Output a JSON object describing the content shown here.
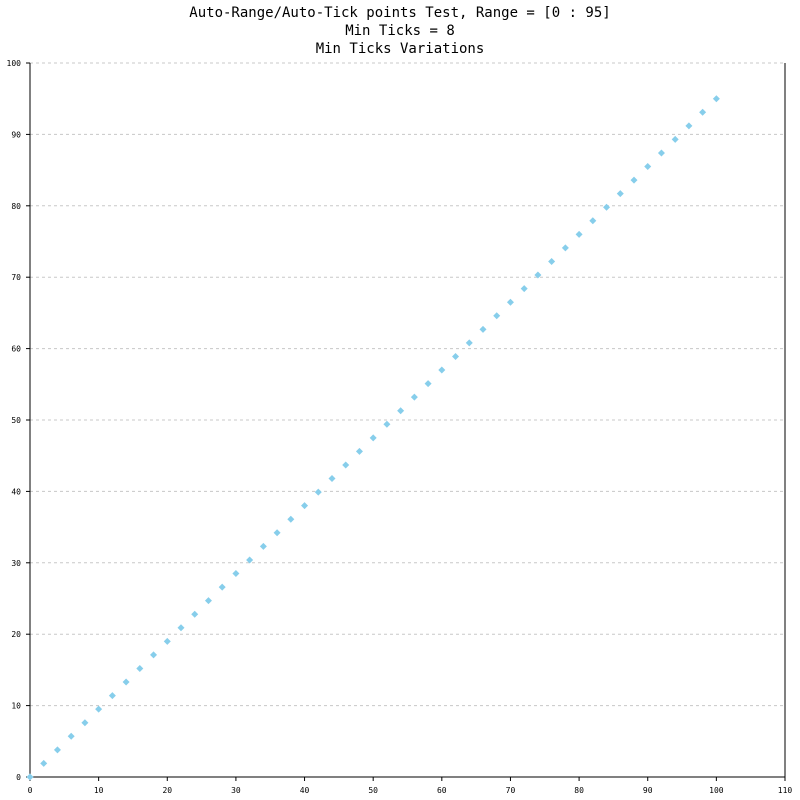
{
  "chart_data": {
    "type": "scatter",
    "title": [
      "Auto-Range/Auto-Tick points Test, Range = [0 : 95]",
      "Min Ticks = 8",
      "Min Ticks Variations"
    ],
    "xlabel": "",
    "ylabel": "",
    "xlim": [
      0,
      110
    ],
    "ylim": [
      0,
      100
    ],
    "x_ticks": [
      0,
      10,
      20,
      30,
      40,
      50,
      60,
      70,
      80,
      90,
      100,
      110
    ],
    "y_ticks": [
      0,
      10,
      20,
      30,
      40,
      50,
      60,
      70,
      80,
      90,
      100
    ],
    "grid": "horizontal-dashed",
    "marker": "diamond",
    "color": "#87ceeb",
    "series": [
      {
        "x": [
          0,
          2,
          4,
          6,
          8,
          10,
          12,
          14,
          16,
          18,
          20,
          22,
          24,
          26,
          28,
          30,
          32,
          34,
          36,
          38,
          40,
          42,
          44,
          46,
          48,
          50,
          52,
          54,
          56,
          58,
          60,
          62,
          64,
          66,
          68,
          70,
          72,
          74,
          76,
          78,
          80,
          82,
          84,
          86,
          88,
          90,
          92,
          94,
          96,
          98,
          100
        ],
        "y": [
          0,
          1.9,
          3.8,
          5.7,
          7.6,
          9.5,
          11.4,
          13.3,
          15.2,
          17.1,
          19,
          20.9,
          22.8,
          24.7,
          26.6,
          28.5,
          30.4,
          32.3,
          34.2,
          36.1,
          38,
          39.9,
          41.8,
          43.7,
          45.6,
          47.5,
          49.4,
          51.3,
          53.2,
          55.1,
          57,
          58.9,
          60.8,
          62.7,
          64.6,
          66.5,
          68.4,
          70.3,
          72.2,
          74.1,
          76,
          77.9,
          79.8,
          81.7,
          83.6,
          85.5,
          87.4,
          89.3,
          91.2,
          93.1,
          95
        ]
      }
    ]
  }
}
